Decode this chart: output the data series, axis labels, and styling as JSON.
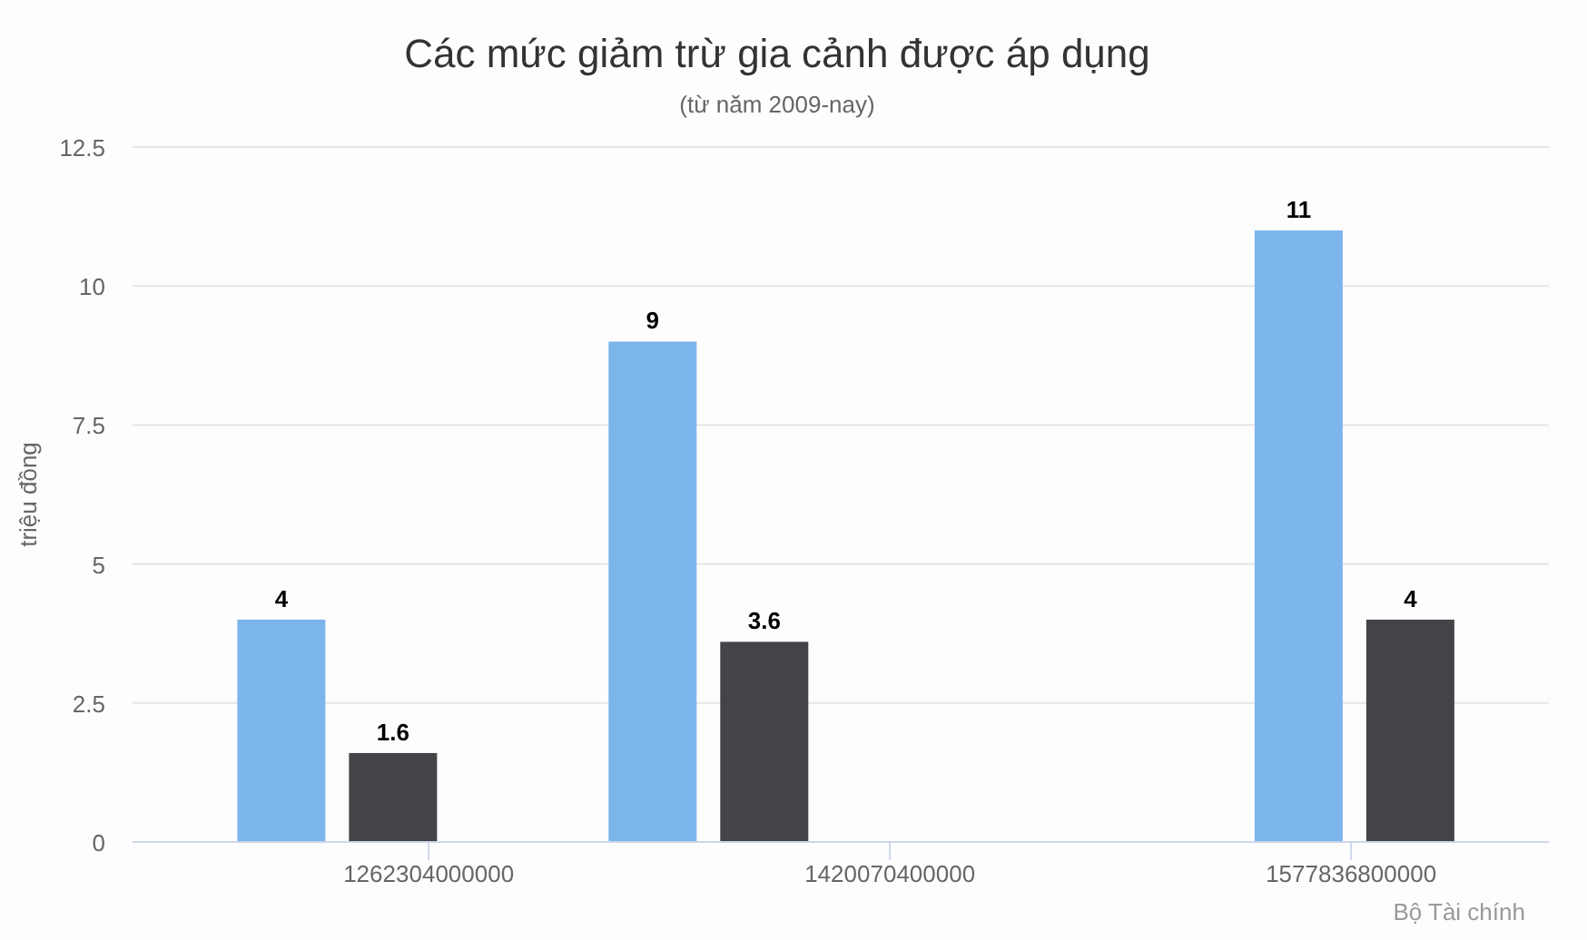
{
  "chart_data": {
    "type": "bar",
    "title": "Các mức giảm trừ gia cảnh được áp dụng",
    "subtitle": "(từ năm 2009-nay)",
    "ylabel": "triệu đồng",
    "x": [
      1231000000000,
      1358000000000,
      1579000000000
    ],
    "series": [
      {
        "color": "#7cb5ec",
        "values": [
          4,
          9,
          11
        ]
      },
      {
        "color": "#434348",
        "values": [
          1.6,
          3.6,
          4
        ]
      }
    ],
    "xlim": [
      1161000000000,
      1645500000000
    ],
    "xticks": [
      1262304000000,
      1420070400000,
      1577836800000
    ],
    "ylim": [
      0,
      12.5
    ],
    "yticks": [
      0,
      2.5,
      5,
      7.5,
      10,
      12.5
    ],
    "grid": "y",
    "data_labels": true,
    "annotations": [
      "Bộ Tài chính"
    ]
  }
}
